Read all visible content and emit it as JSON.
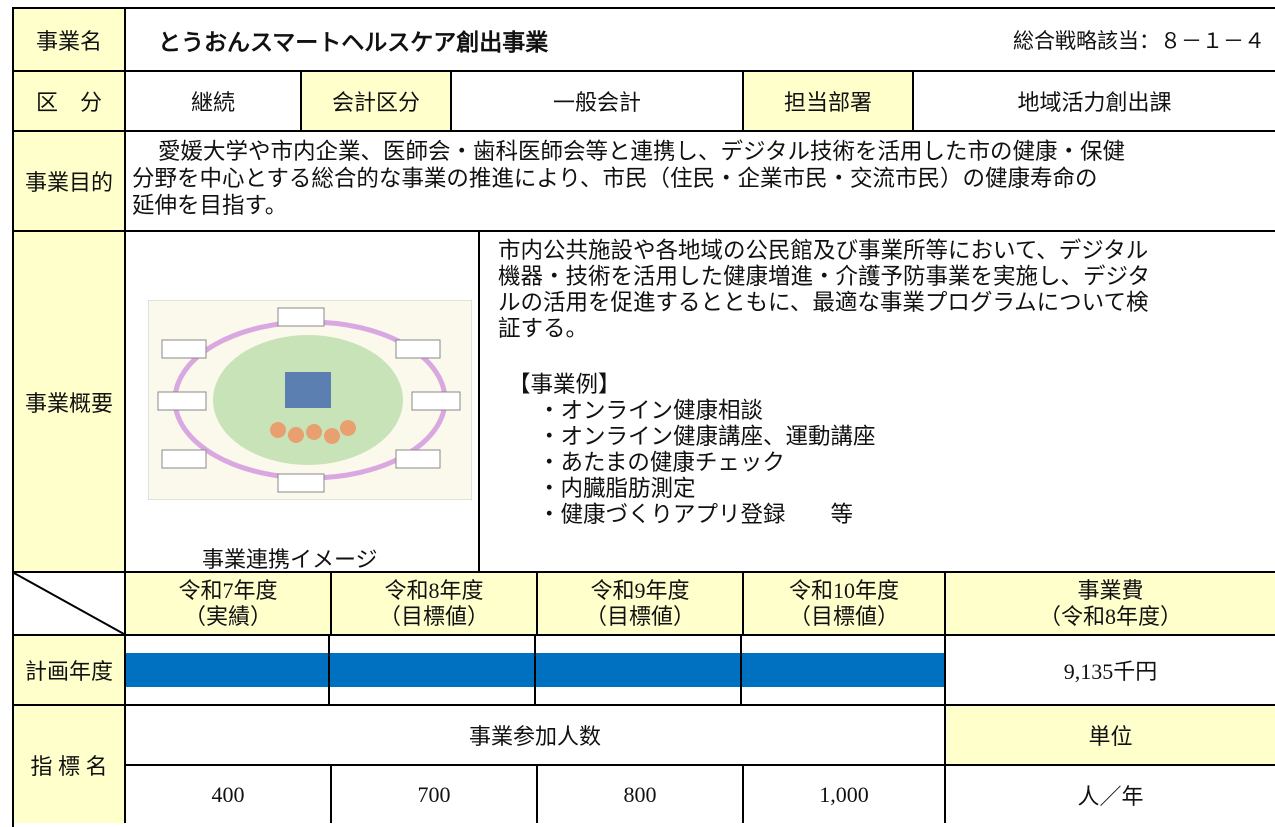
{
  "header": {
    "label": "事業名",
    "title": "とうおんスマートヘルスケア創出事業",
    "strategy": "総合戦略該当：８－１－４"
  },
  "classification": {
    "label": "区　分",
    "value": "継続",
    "account_label": "会計区分",
    "account": "一般会計",
    "department_label": "担当部署",
    "department": "地域活力創出課"
  },
  "purpose": {
    "label": "事業目的",
    "lines": [
      "愛媛大学や市内企業、医師会・歯科医師会等と連携し、デジタル技術を活用した市の健康・保健",
      "分野を中心とする総合的な事業の推進により、市民（住民・企業市民・交流市民）の健康寿命の",
      "延伸を目指す。"
    ]
  },
  "overview": {
    "label": "事業概要",
    "image_caption": "事業連携イメージ",
    "lines": [
      "市内公共施設や各地域の公民館及び事業所等において、デジタル",
      "機器・技術を活用した健康増進・介護予防事業を実施し、デジタ",
      "ルの活用を促進するとともに、最適な事業プログラムについて検",
      "証する。"
    ],
    "examples_heading": "【事業例】",
    "examples": [
      "・オンライン健康相談",
      "・オンライン健康講座、運動講座",
      "・あたまの健康チェック",
      "・内臓脂肪測定",
      "・健康づくりアプリ登録　　等"
    ]
  },
  "schedule": {
    "years": [
      {
        "year": "令和7年度",
        "kind": "（実績）"
      },
      {
        "year": "令和8年度",
        "kind": "（目標値）"
      },
      {
        "year": "令和9年度",
        "kind": "（目標値）"
      },
      {
        "year": "令和10年度",
        "kind": "（目標値）"
      }
    ],
    "cost_header": "事業費",
    "cost_year": "（令和8年度）",
    "plan_label": "計画年度",
    "cost": "9,135千円"
  },
  "indicator": {
    "label": "指 標 名",
    "name": "事業参加人数",
    "unit_label": "単位",
    "values": [
      "400",
      "700",
      "800",
      "1,000"
    ],
    "unit": "人／年"
  }
}
